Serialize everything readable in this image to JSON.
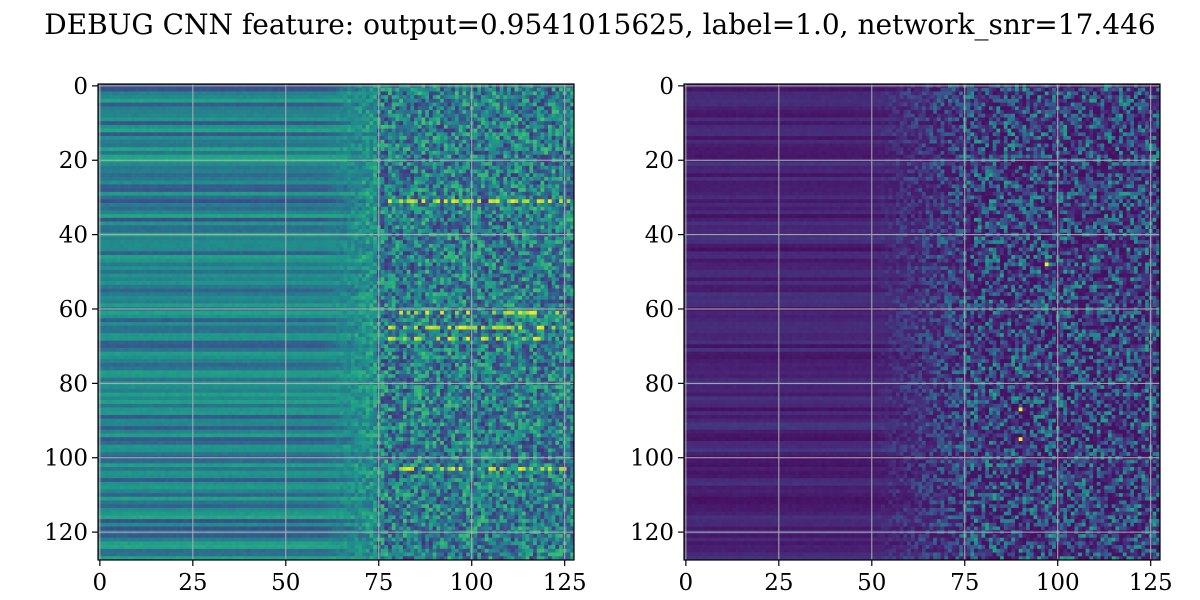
{
  "title": "DEBUG CNN feature: output=0.9541015625, label=1.0, network_snr=17.446",
  "chart_data": [
    {
      "type": "heatmap",
      "panel": "left",
      "colormap": "viridis",
      "rows": 128,
      "cols": 128,
      "xlim": [
        0,
        127
      ],
      "ylim": [
        127,
        0
      ],
      "x_ticks": [
        0,
        25,
        50,
        75,
        100,
        125
      ],
      "y_ticks": [
        0,
        20,
        40,
        60,
        80,
        100,
        120
      ],
      "grid": true,
      "description_values": {
        "low_freq_region_cols": [
          0,
          60
        ],
        "noisy_region_cols": [
          75,
          127
        ],
        "bright_rows": [
          31,
          61,
          65,
          68,
          103
        ]
      }
    },
    {
      "type": "heatmap",
      "panel": "right",
      "colormap": "viridis",
      "rows": 128,
      "cols": 128,
      "xlim": [
        0,
        127
      ],
      "ylim": [
        127,
        0
      ],
      "x_ticks": [
        0,
        25,
        50,
        75,
        100,
        125
      ],
      "y_ticks": [
        0,
        20,
        40,
        60,
        80,
        100,
        120
      ],
      "grid": true,
      "description_values": {
        "low_freq_region_cols": [
          0,
          50
        ],
        "noisy_region_cols": [
          75,
          127
        ],
        "bright_points": [
          [
            97,
            48
          ],
          [
            90,
            87
          ],
          [
            90,
            95
          ]
        ]
      }
    }
  ]
}
